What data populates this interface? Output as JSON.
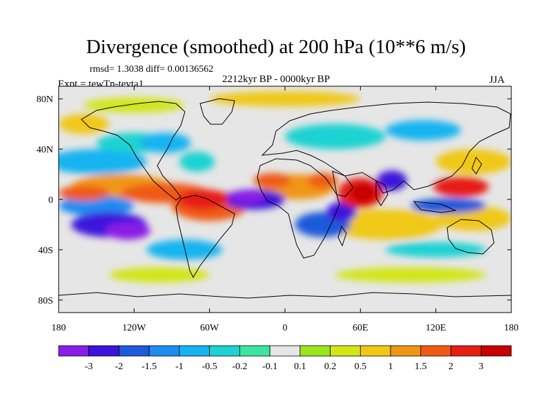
{
  "chart_data": {
    "type": "heatmap",
    "title": "Divergence (smoothed) at 200 hPa (10**6 m/s)",
    "stats": "rmsd= 1.3038 diff= 0.00136562",
    "period": "2212kyr BP - 0000kyr BP",
    "experiment": "Expt = tewTn-tevta1",
    "season": "JJA",
    "x_ticks": [
      "180",
      "120W",
      "60W",
      "0",
      "60E",
      "120E",
      "180"
    ],
    "x_tick_values": [
      -180,
      -120,
      -60,
      0,
      60,
      120,
      180
    ],
    "y_ticks": [
      "80N",
      "40N",
      "0",
      "40S",
      "80S"
    ],
    "y_tick_values": [
      80,
      40,
      0,
      -40,
      -80
    ],
    "xlim": [
      -180,
      180
    ],
    "ylim": [
      -90,
      90
    ],
    "colorbar_labels": [
      "-3",
      "-2",
      "-1.5",
      "-1",
      "-0.5",
      "-0.2",
      "-0.1",
      "0.1",
      "0.2",
      "0.5",
      "1",
      "1.5",
      "2",
      "3"
    ],
    "colorbar_levels": [
      -3,
      -2,
      -1.5,
      -1,
      -0.5,
      -0.2,
      -0.1,
      0.1,
      0.2,
      0.5,
      1,
      1.5,
      2,
      3
    ],
    "colorbar_colors": [
      "#8a1ee6",
      "#3c14dc",
      "#1e5adc",
      "#1e8cf0",
      "#14b4f0",
      "#1ed2d2",
      "#3ce6a0",
      "#e6e6e6",
      "#9be61e",
      "#d2e614",
      "#f0c814",
      "#f09614",
      "#f05a14",
      "#e61e14",
      "#c80000"
    ],
    "field_features": [
      {
        "region": "eastern tropical Pacific",
        "lon": -140,
        "lat": -20,
        "value": -3
      },
      {
        "region": "equatorial Atlantic",
        "lon": -25,
        "lat": 0,
        "value": -3
      },
      {
        "region": "western Indian Ocean",
        "lon": 60,
        "lat": 5,
        "value": 3
      },
      {
        "region": "tropical South America",
        "lon": -65,
        "lat": 0,
        "value": 2
      },
      {
        "region": "North Pacific",
        "lon": -150,
        "lat": 30,
        "value": -1
      },
      {
        "region": "Bay of Bengal",
        "lon": 85,
        "lat": 15,
        "value": -2
      },
      {
        "region": "western Pacific",
        "lon": 140,
        "lat": 10,
        "value": 2
      },
      {
        "region": "southern Africa",
        "lon": 30,
        "lat": -20,
        "value": -2
      }
    ]
  }
}
